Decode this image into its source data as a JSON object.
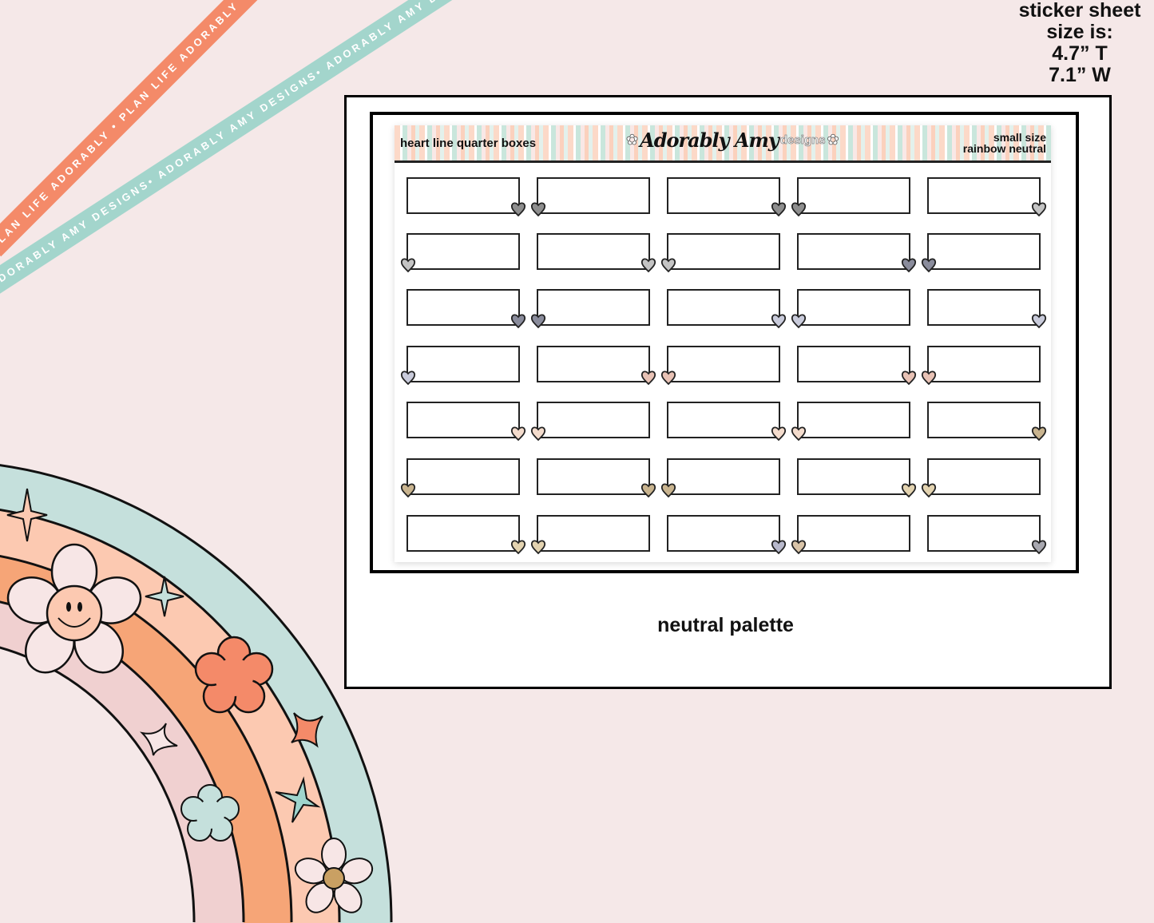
{
  "ribbons": {
    "orange_text": "PLAN LIFE ADORABLY • PLAN LIFE ADORABLY • PLAN LIFE ADORABLY • PLAN LIFE ADORABLY •",
    "teal_text": "ADORABLY AMY DESIGNS• ADORABLY AMY DESIGNS• ADORABLY AMY DESIGNS• ADORABLY AMY DESIGNS•"
  },
  "size_note": {
    "line1": "sticker sheet",
    "line2": "size is:",
    "line3": "4.7” T",
    "line4": "7.1” W"
  },
  "sheet": {
    "title": "heart line quarter boxes",
    "logo_script": "Adorably Amy",
    "logo_designs": "designs",
    "meta_line1": "small size",
    "meta_line2": "rainbow neutral",
    "heart_colors": [
      [
        "#8e8e8e",
        "#8e8e8e",
        "#8e8e8e",
        "#8e8e8e",
        "#c4c4c4"
      ],
      [
        "#c4c4c4",
        "#c4c4c4",
        "#c4c4c4",
        "#8a8c9c",
        "#8a8c9c"
      ],
      [
        "#8a8c9c",
        "#8a8c9c",
        "#c9cbdb",
        "#c9cbdb",
        "#c9cbdb"
      ],
      [
        "#c9cbdb",
        "#e8c2b5",
        "#e8c2b5",
        "#e8c2b5",
        "#e8c2b5"
      ],
      [
        "#f4dccd",
        "#f4dccd",
        "#f4dccd",
        "#f4dccd",
        "#c9b48f"
      ],
      [
        "#c9b48f",
        "#c9b48f",
        "#c9b48f",
        "#e3d3b0",
        "#e3d3b0"
      ],
      [
        "#e3d3b0",
        "#e3d3b0",
        "#b8b9cc",
        "#d9c4a8",
        "#a8a8b0"
      ]
    ]
  },
  "caption": "neutral palette",
  "colors": {
    "background": "#f5e8e8",
    "rainbow_teal": "#c5e0dc",
    "rainbow_peach": "#fcc9b1",
    "rainbow_orange": "#f6a577",
    "rainbow_pink": "#f0d0d0",
    "accent_coral": "#f48a69"
  }
}
